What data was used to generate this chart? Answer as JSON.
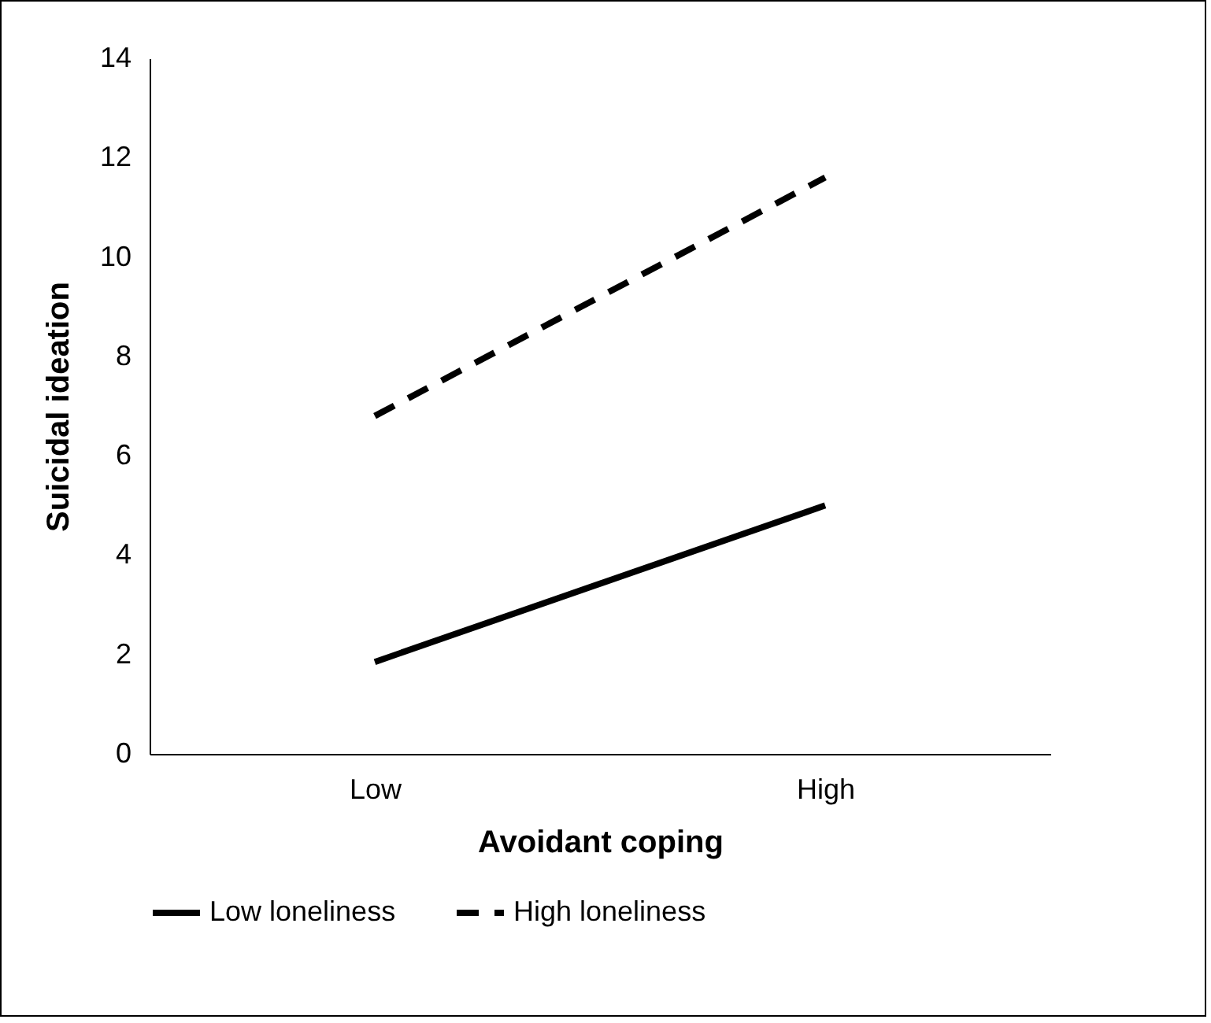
{
  "chart_data": {
    "type": "line",
    "xlabel": "Avoidant coping",
    "ylabel": "Suicidal ideation",
    "categories": [
      "Low",
      "High"
    ],
    "series": [
      {
        "name": "Low loneliness",
        "color": "#000000",
        "line_style": "solid",
        "values": [
          1.85,
          5.0
        ]
      },
      {
        "name": "High loneliness",
        "color": "#000000",
        "line_style": "dashed",
        "values": [
          6.8,
          11.6
        ]
      }
    ],
    "ylim": [
      0,
      14
    ],
    "yticks": [
      0,
      2,
      4,
      6,
      8,
      10,
      12,
      14
    ],
    "grid": false,
    "legend": "bottom",
    "marker": "none"
  }
}
